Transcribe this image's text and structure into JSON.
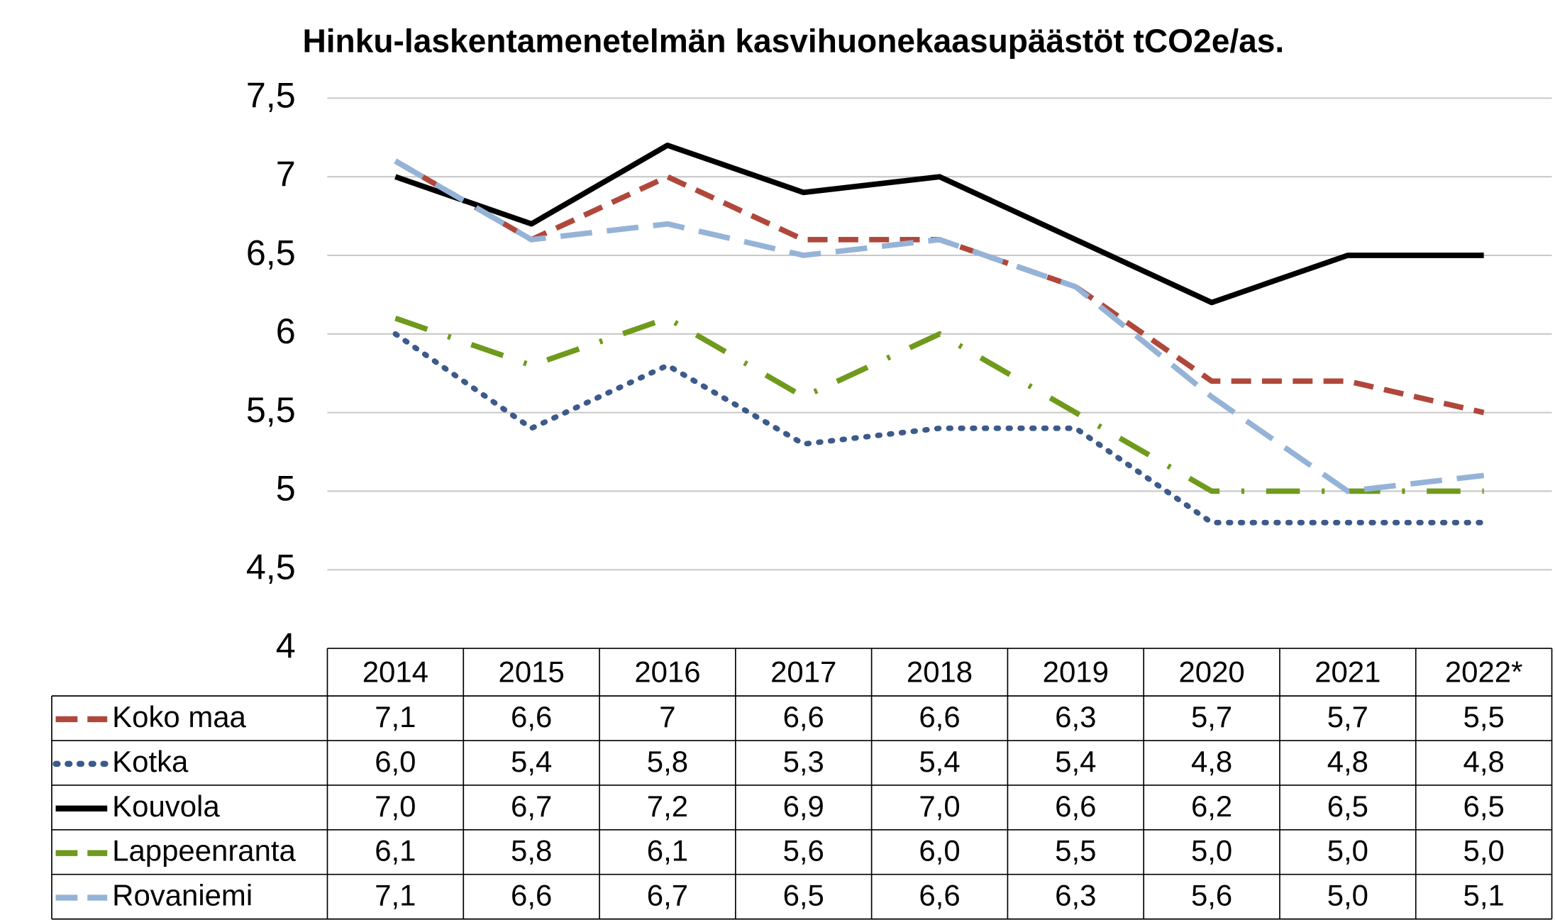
{
  "chart_data": {
    "type": "line",
    "title": "Hinku-laskentamenetelmän kasvihuonekaasupäästöt tCO2e/as.",
    "categories": [
      "2014",
      "2015",
      "2016",
      "2017",
      "2018",
      "2019",
      "2020",
      "2021",
      "2022*"
    ],
    "ylim": [
      4,
      7.5
    ],
    "yticks": [
      4,
      {
        "value": 4.5,
        "label": "4,5"
      },
      5,
      {
        "value": 5.5,
        "label": "5,5"
      },
      6,
      {
        "value": 6.5,
        "label": "6,5"
      },
      7,
      {
        "value": 7.5,
        "label": "7,5"
      }
    ],
    "grid": true,
    "series": [
      {
        "name": "Koko maa",
        "color": "#b0473b",
        "line_style": "dashed",
        "values": [
          7.1,
          6.6,
          7,
          6.6,
          6.6,
          6.3,
          5.7,
          5.7,
          5.5
        ],
        "value_labels": [
          "7,1",
          "6,6",
          "7",
          "6,6",
          "6,6",
          "6,3",
          "5,7",
          "5,7",
          "5,5"
        ]
      },
      {
        "name": "Kotka",
        "color": "#3c5a8a",
        "line_style": "dotted",
        "values": [
          6.0,
          5.4,
          5.8,
          5.3,
          5.4,
          5.4,
          4.8,
          4.8,
          4.8
        ],
        "value_labels": [
          "6,0",
          "5,4",
          "5,8",
          "5,3",
          "5,4",
          "5,4",
          "4,8",
          "4,8",
          "4,8"
        ]
      },
      {
        "name": "Kouvola",
        "color": "#000000",
        "line_style": "solid",
        "values": [
          7.0,
          6.7,
          7.2,
          6.9,
          7.0,
          6.6,
          6.2,
          6.5,
          6.5
        ],
        "value_labels": [
          "7,0",
          "6,7",
          "7,2",
          "6,9",
          "7,0",
          "6,6",
          "6,2",
          "6,5",
          "6,5"
        ]
      },
      {
        "name": "Lappeenranta",
        "color": "#6f9a1c",
        "line_style": "dash-dot",
        "values": [
          6.1,
          5.8,
          6.1,
          5.6,
          6.0,
          5.5,
          5.0,
          5.0,
          5.0
        ],
        "value_labels": [
          "6,1",
          "5,8",
          "6,1",
          "5,6",
          "6,0",
          "5,5",
          "5,0",
          "5,0",
          "5,0"
        ]
      },
      {
        "name": "Rovaniemi",
        "color": "#95b3d7",
        "line_style": "long-dash",
        "values": [
          7.1,
          6.6,
          6.7,
          6.5,
          6.6,
          6.3,
          5.6,
          5.0,
          5.1
        ],
        "value_labels": [
          "7,1",
          "6,6",
          "6,7",
          "6,5",
          "6,6",
          "6,3",
          "5,6",
          "5,0",
          "5,1"
        ]
      }
    ]
  }
}
